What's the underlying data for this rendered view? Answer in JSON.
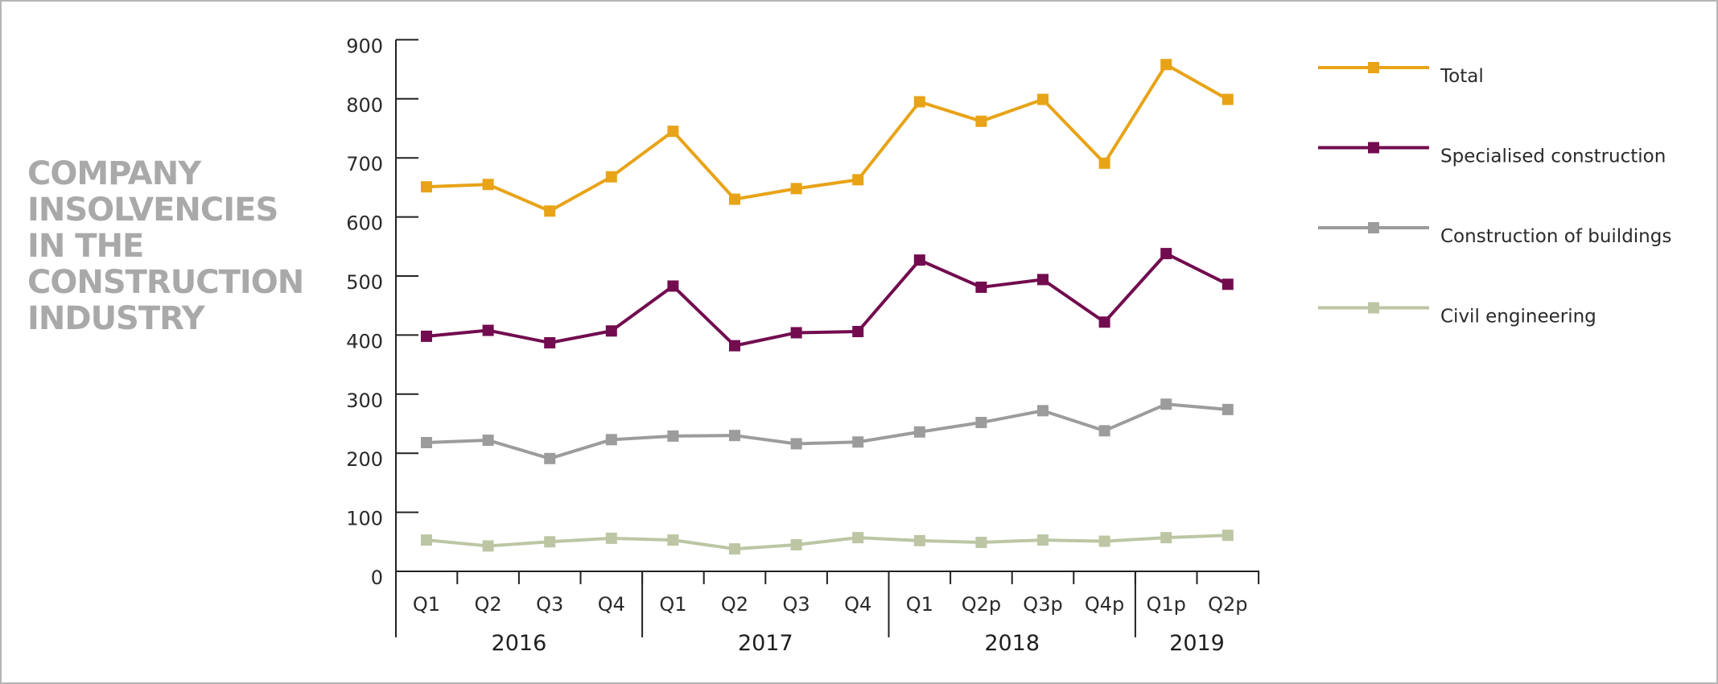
{
  "title_lines": [
    "COMPANY",
    "INSOLVENCIES",
    "IN THE",
    "CONSTRUCTION",
    "INDUSTRY"
  ],
  "chart_data": {
    "type": "line",
    "title": "COMPANY INSOLVENCIES IN THE CONSTRUCTION INDUSTRY",
    "xlabel": "",
    "ylabel": "",
    "ylim": [
      0,
      900
    ],
    "yticks": [
      0,
      100,
      200,
      300,
      400,
      500,
      600,
      700,
      800,
      900
    ],
    "grid": false,
    "legend_position": "right",
    "categories": [
      "Q1",
      "Q2",
      "Q3",
      "Q4",
      "Q1",
      "Q2",
      "Q3",
      "Q4",
      "Q1",
      "Q2p",
      "Q3p",
      "Q4p",
      "Q1p",
      "Q2p"
    ],
    "year_groups": [
      {
        "label": "2016",
        "count": 4
      },
      {
        "label": "2017",
        "count": 4
      },
      {
        "label": "2018",
        "count": 4
      },
      {
        "label": "2019",
        "count": 2
      }
    ],
    "series": [
      {
        "name": "Total",
        "color": "#e8a317",
        "values": [
          651,
          655,
          610,
          668,
          745,
          630,
          648,
          663,
          795,
          762,
          799,
          691,
          858,
          799
        ]
      },
      {
        "name": "Specialised construction",
        "color": "#720c4f",
        "values": [
          398,
          408,
          387,
          407,
          483,
          382,
          404,
          406,
          527,
          481,
          494,
          422,
          538,
          486
        ]
      },
      {
        "name": "Construction of buildings",
        "color": "#9c9c9c",
        "values": [
          218,
          222,
          191,
          223,
          229,
          230,
          216,
          219,
          236,
          252,
          272,
          238,
          283,
          274
        ]
      },
      {
        "name": "Civil engineering",
        "color": "#bcc6a4",
        "values": [
          53,
          43,
          50,
          56,
          53,
          38,
          45,
          57,
          52,
          49,
          53,
          51,
          57,
          61
        ]
      }
    ]
  }
}
